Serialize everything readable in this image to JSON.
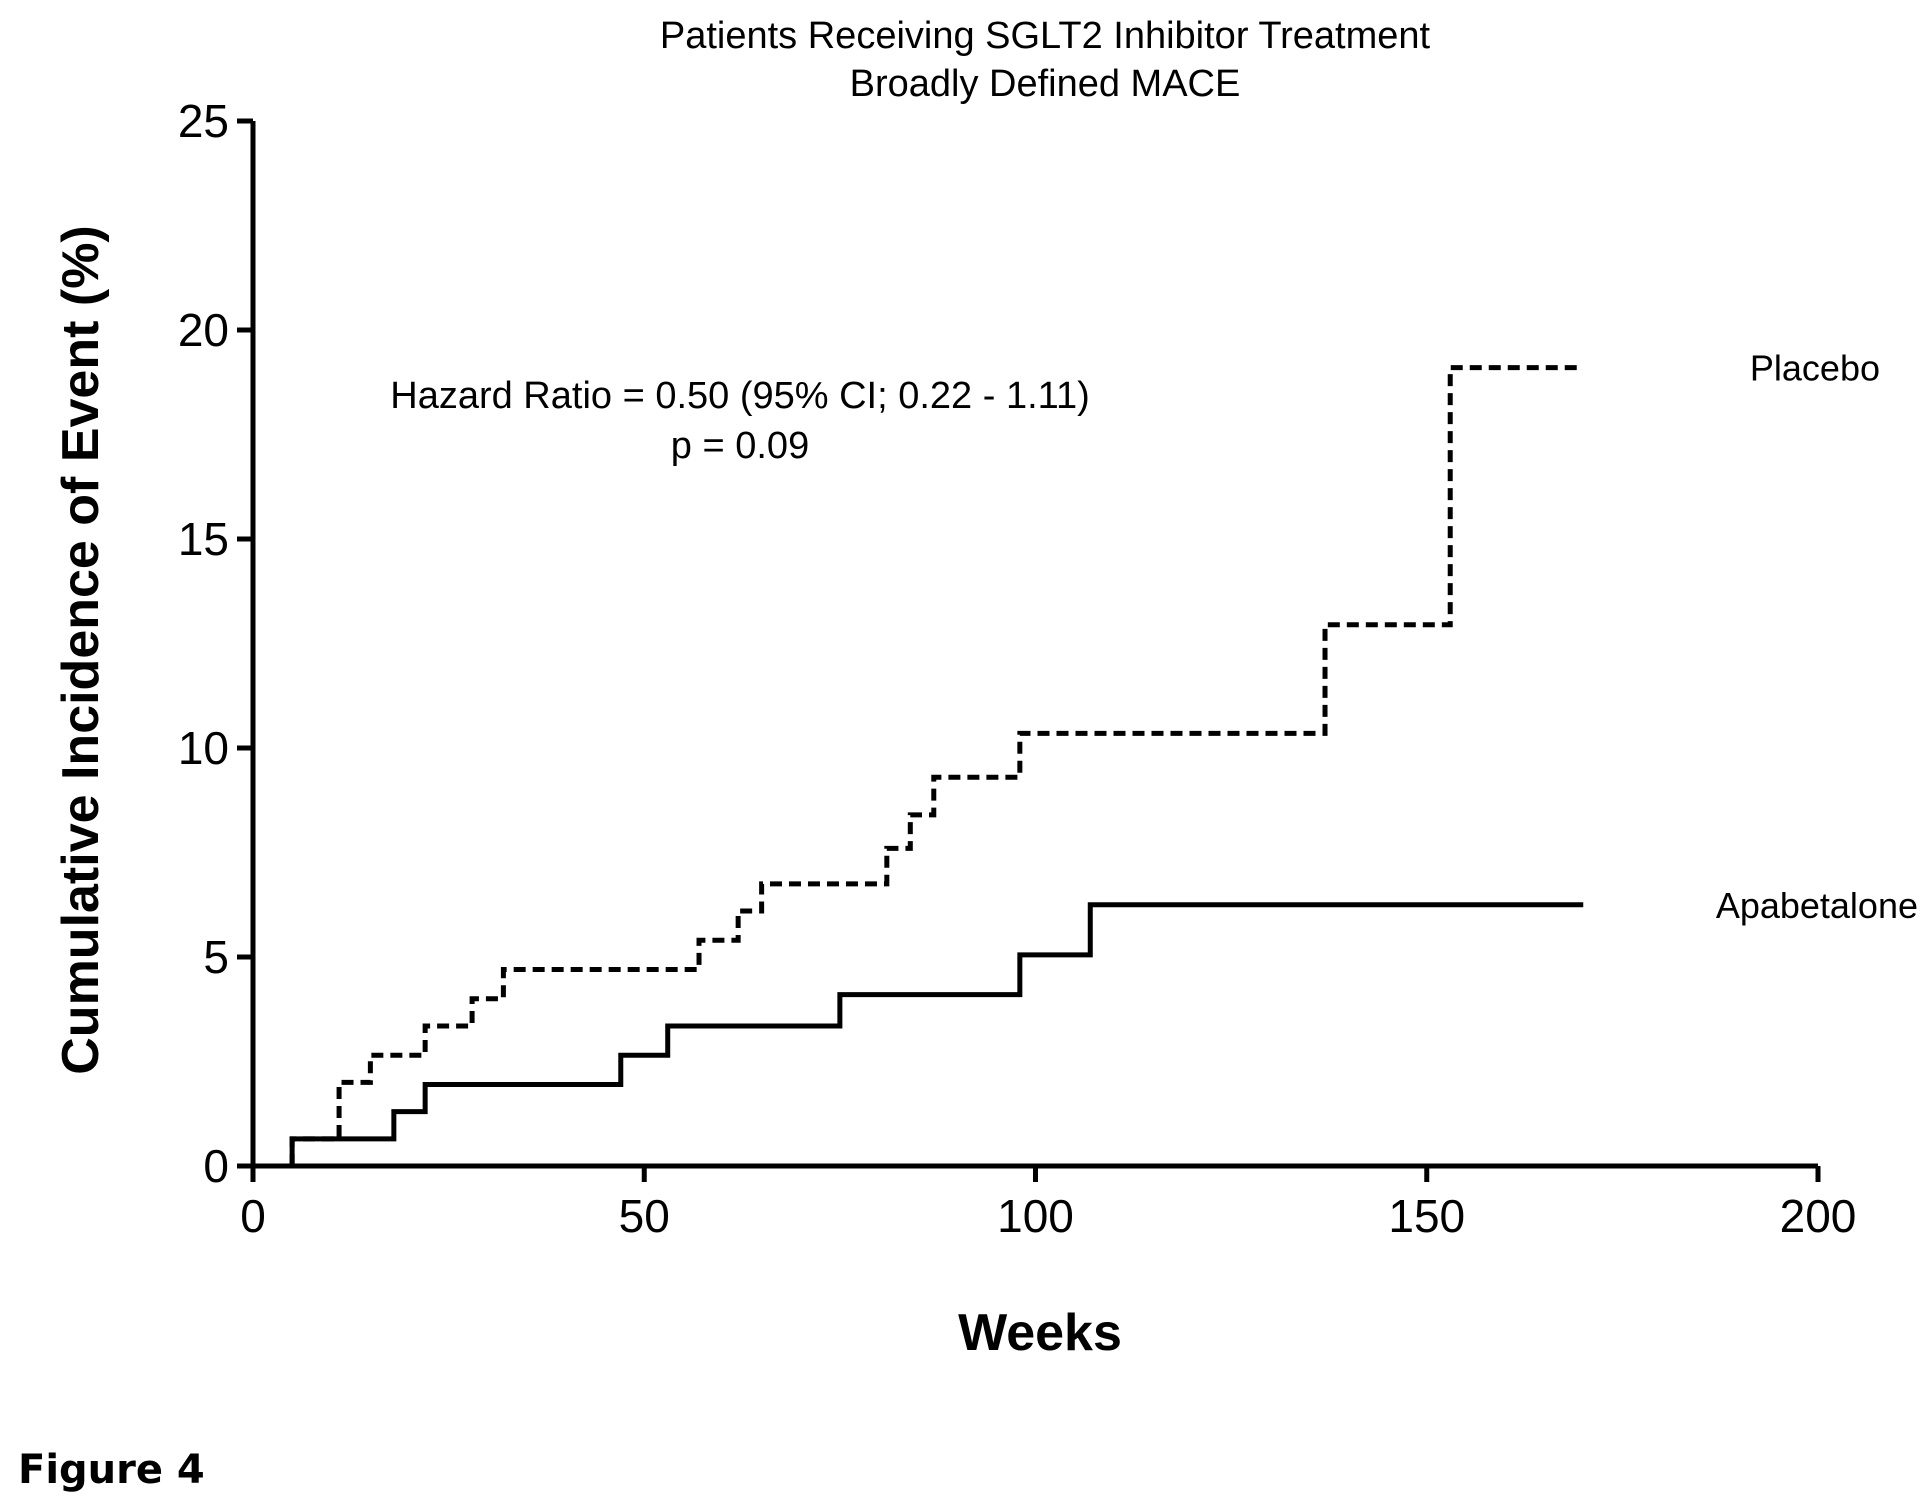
{
  "figure_caption": "Figure 4",
  "chart_data": {
    "type": "line",
    "step": true,
    "title": "Patients Receiving SGLT2 Inhibitor Treatment",
    "subtitle": "Broadly Defined MACE",
    "xlabel": "Weeks",
    "ylabel": "Cumulative Incidence of Event (%)",
    "xlim": [
      0,
      200
    ],
    "ylim": [
      0,
      25
    ],
    "xticks": [
      0,
      50,
      100,
      150,
      200
    ],
    "yticks": [
      0,
      5,
      10,
      15,
      20,
      25
    ],
    "grid": false,
    "legend": "series labels at right end of lines",
    "annotations": {
      "hazard_ratio": "Hazard Ratio = 0.50 (95% CI;  0.22 - 1.11)",
      "p_value": "p = 0.09"
    },
    "series": [
      {
        "name": "Placebo",
        "style": "dashed",
        "color": "#000000",
        "x": [
          5,
          11,
          15,
          22,
          28,
          32,
          57,
          62,
          65,
          81,
          84,
          87,
          98,
          137,
          153,
          170
        ],
        "y": [
          0.65,
          2.0,
          2.65,
          3.35,
          4.0,
          4.7,
          5.4,
          6.1,
          6.75,
          7.6,
          8.4,
          9.3,
          10.35,
          12.95,
          19.1,
          19.1
        ]
      },
      {
        "name": "Apabetalone",
        "style": "solid",
        "color": "#000000",
        "x": [
          5,
          18,
          22,
          47,
          53,
          75,
          98,
          107,
          170
        ],
        "y": [
          0.65,
          1.3,
          1.95,
          2.65,
          3.35,
          4.1,
          5.05,
          6.25,
          6.25
        ]
      }
    ]
  }
}
